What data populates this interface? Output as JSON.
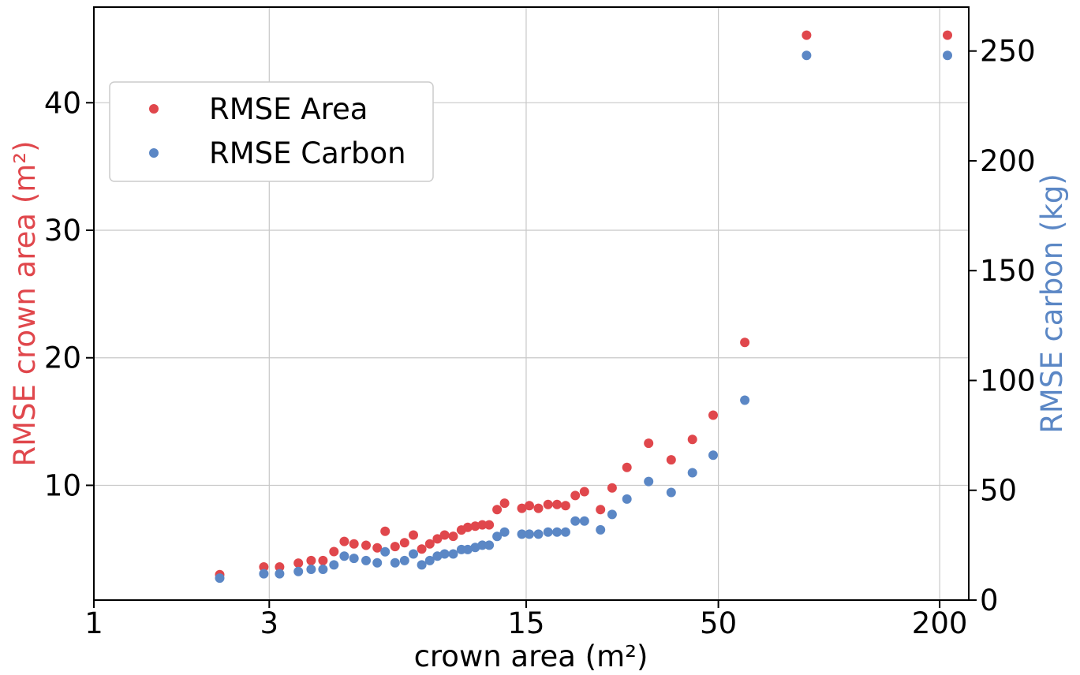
{
  "chart_data": {
    "type": "scatter",
    "xlabel": "crown area (m²)",
    "ylabel_left": "RMSE crown area (m²)",
    "ylabel_right": "RMSE carbon (kg)",
    "x_scale": "log",
    "xlim": [
      1,
      240
    ],
    "ylim_left": [
      1,
      47.5
    ],
    "ylim_right": [
      0,
      270
    ],
    "x_ticks": [
      1,
      3,
      15,
      50,
      200
    ],
    "y_left_ticks": [
      10,
      20,
      30,
      40
    ],
    "y_right_ticks": [
      0,
      50,
      100,
      150,
      200,
      250
    ],
    "grid": true,
    "legend_position": "upper-left",
    "series": [
      {
        "name": "RMSE Area",
        "axis": "left",
        "color": "#e0474c",
        "x": [
          2.2,
          2.9,
          3.2,
          3.6,
          3.9,
          4.2,
          4.5,
          4.8,
          5.1,
          5.5,
          5.9,
          6.2,
          6.6,
          7.0,
          7.4,
          7.8,
          8.2,
          8.6,
          9.0,
          9.5,
          10.0,
          10.4,
          10.9,
          11.4,
          11.9,
          12.5,
          13.1,
          14.6,
          15.3,
          16.2,
          17.2,
          18.2,
          19.2,
          20.4,
          21.6,
          23.9,
          25.7,
          28.2,
          32.3,
          37.2,
          42.5,
          48.4,
          59.0,
          86.9,
          210.0
        ],
        "y": [
          3.0,
          3.6,
          3.6,
          3.9,
          4.1,
          4.1,
          4.8,
          5.6,
          5.4,
          5.3,
          5.1,
          6.4,
          5.2,
          5.5,
          6.1,
          5.0,
          5.4,
          5.8,
          6.1,
          6.0,
          6.5,
          6.7,
          6.8,
          6.9,
          6.9,
          8.1,
          8.6,
          8.2,
          8.4,
          8.2,
          8.5,
          8.5,
          8.4,
          9.2,
          9.5,
          8.1,
          9.8,
          11.4,
          13.3,
          12.0,
          13.6,
          15.5,
          21.2,
          45.3,
          45.3
        ],
        "values_note": ""
      },
      {
        "name": "RMSE Carbon",
        "axis": "right",
        "color": "#5b87c5",
        "x": [
          2.2,
          2.9,
          3.2,
          3.6,
          3.9,
          4.2,
          4.5,
          4.8,
          5.1,
          5.5,
          5.9,
          6.2,
          6.6,
          7.0,
          7.4,
          7.8,
          8.2,
          8.6,
          9.0,
          9.5,
          10.0,
          10.4,
          10.9,
          11.4,
          11.9,
          12.5,
          13.1,
          14.6,
          15.3,
          16.2,
          17.2,
          18.2,
          19.2,
          20.4,
          21.6,
          23.9,
          25.7,
          28.2,
          32.3,
          37.2,
          42.5,
          48.4,
          59.0,
          86.9,
          210.0
        ],
        "y": [
          10,
          12,
          12,
          13,
          14,
          14,
          16,
          20,
          19,
          18,
          17,
          22,
          17,
          18,
          21,
          16,
          18,
          20,
          21,
          21,
          23,
          23,
          24,
          25,
          25,
          29,
          31,
          30,
          30,
          30,
          31,
          31,
          31,
          36,
          36,
          32,
          39,
          46,
          54,
          49,
          58,
          66,
          91,
          248,
          248
        ],
        "values_note": ""
      }
    ]
  }
}
